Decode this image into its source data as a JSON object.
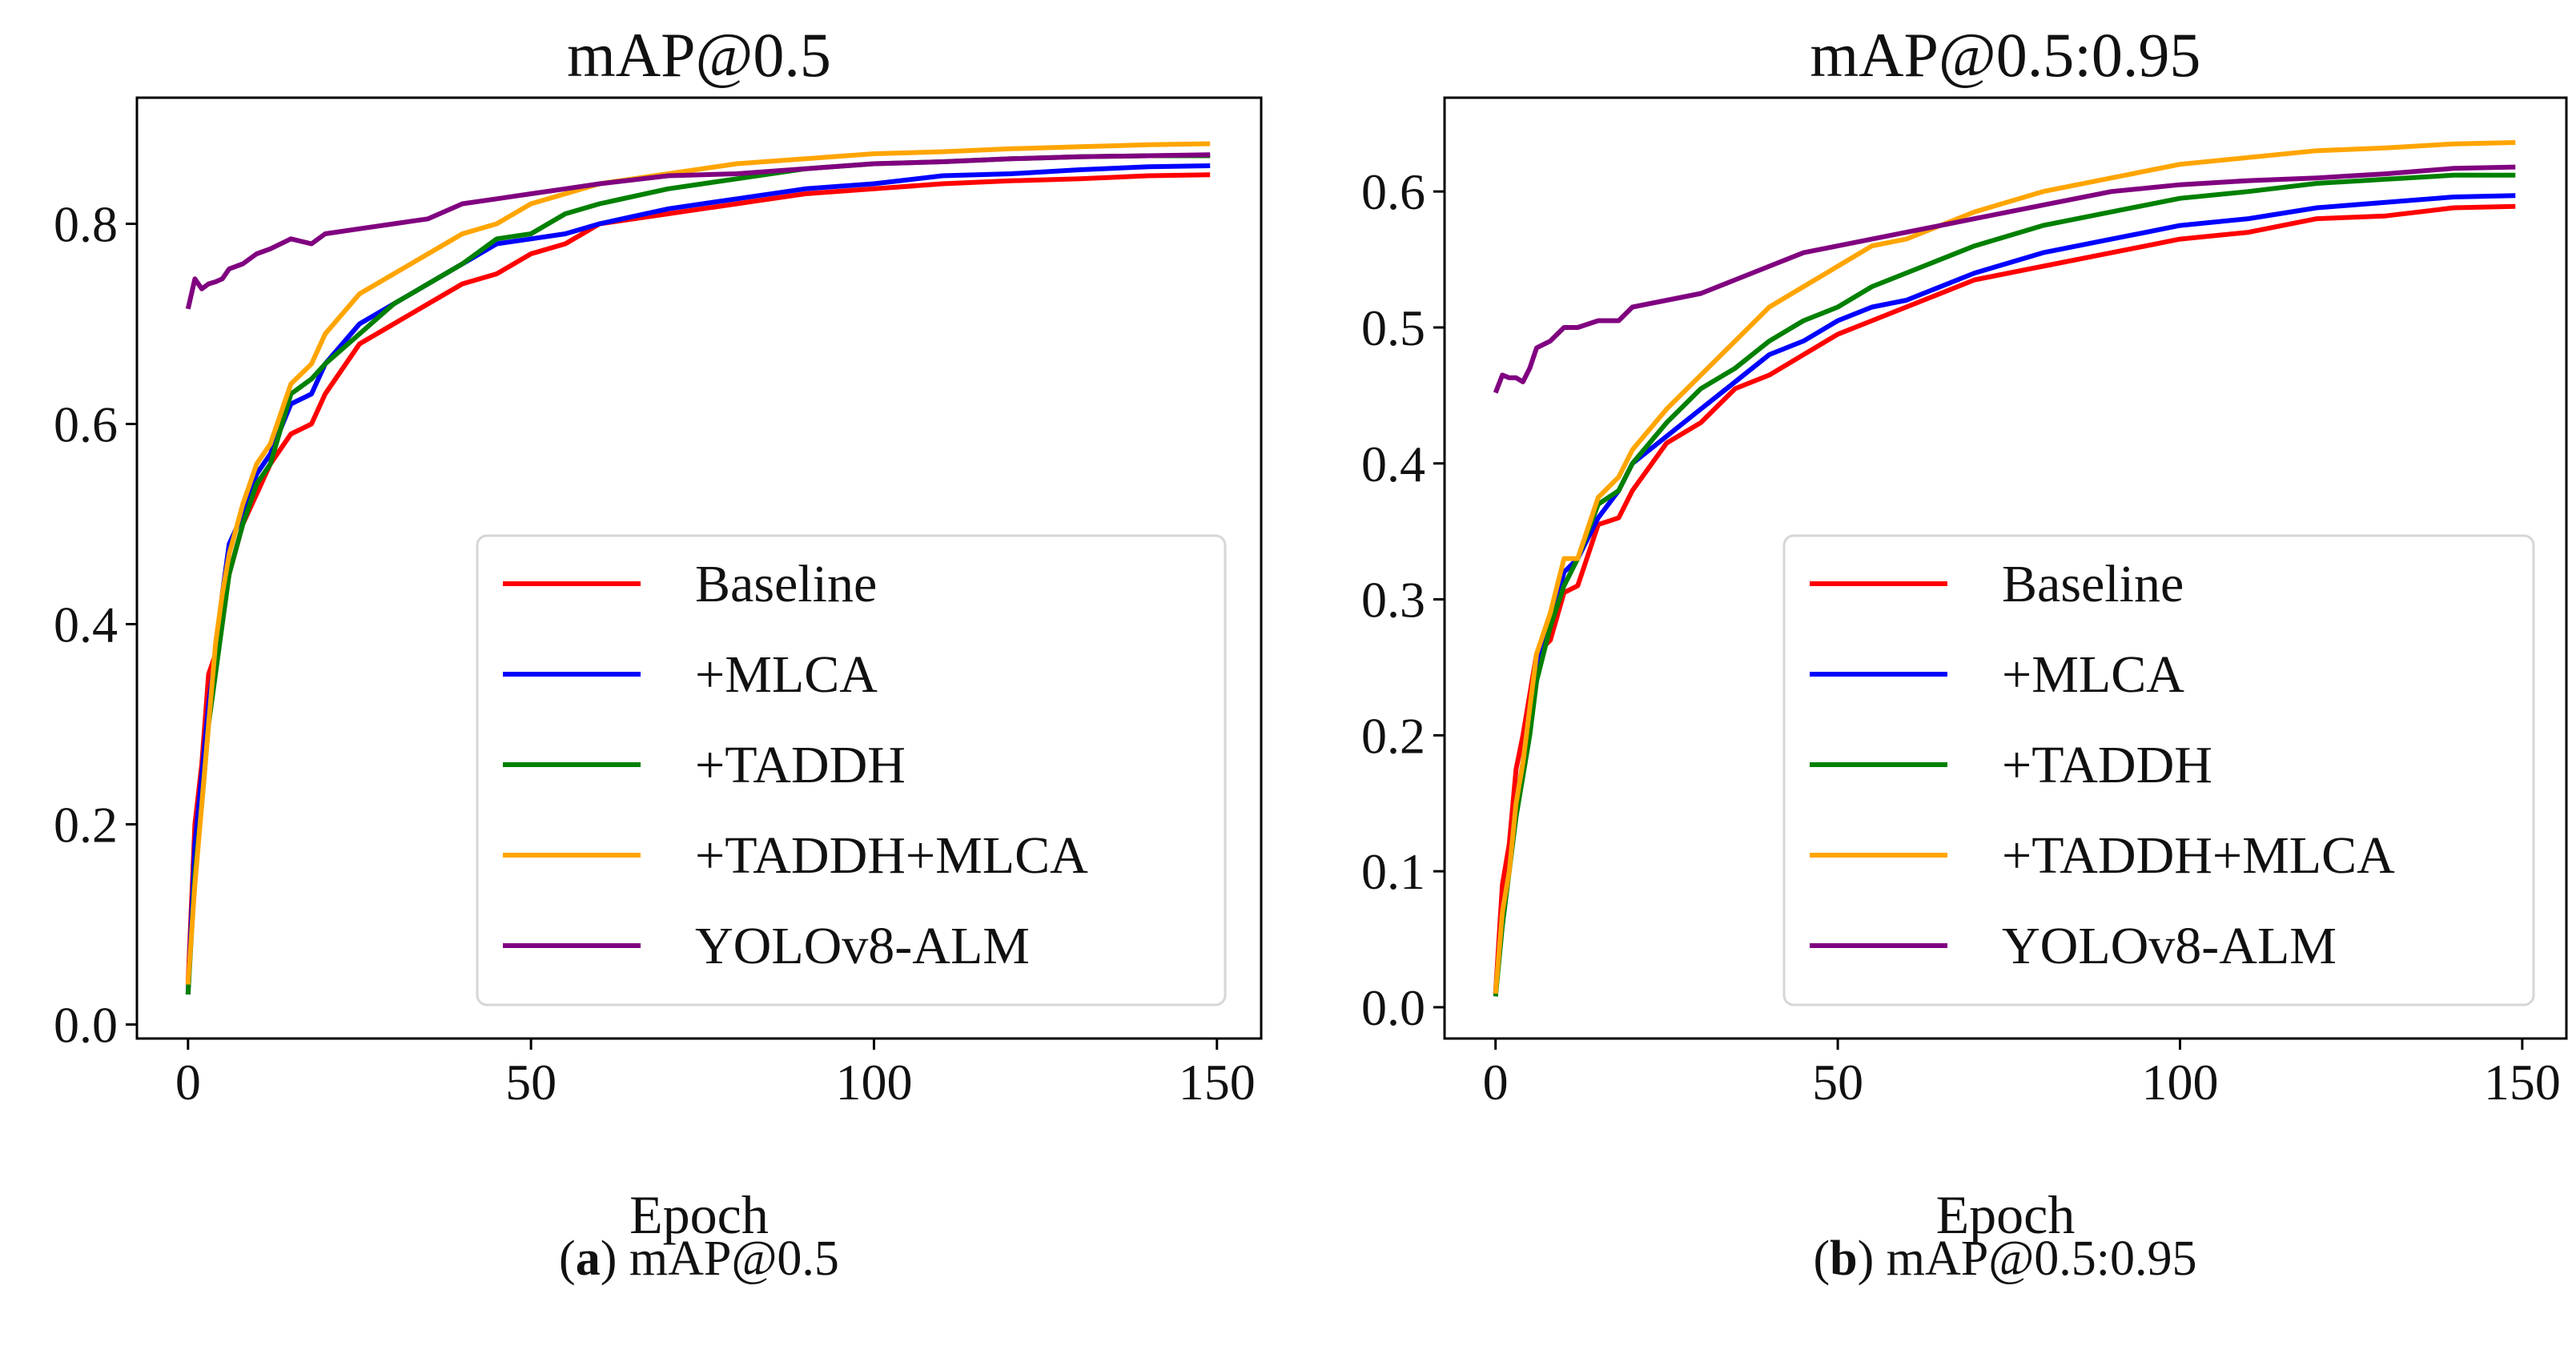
{
  "chart_data": [
    {
      "type": "line",
      "title": "mAP@0.5",
      "xlabel": "Epoch",
      "ylabel": "",
      "caption_label": "a",
      "caption_text": " mAP@0.5",
      "xlim": [
        -7.45,
        156.45
      ],
      "ylim": [
        -0.014,
        0.926
      ],
      "xticks": [
        0,
        50,
        100,
        150
      ],
      "yticks": [
        0.0,
        0.2,
        0.4,
        0.6,
        0.8
      ],
      "ytick_labels": [
        "0.0",
        "0.2",
        "0.4",
        "0.6",
        "0.8"
      ],
      "xtick_labels": [
        "0",
        "50",
        "100",
        "150"
      ],
      "legend_position": "lower-right",
      "grid": false,
      "x": [
        0,
        1,
        2,
        3,
        4,
        5,
        6,
        8,
        10,
        12,
        15,
        18,
        20,
        25,
        30,
        35,
        40,
        45,
        50,
        55,
        60,
        70,
        80,
        90,
        100,
        110,
        120,
        130,
        140,
        149
      ],
      "series": [
        {
          "name": "Baseline",
          "color": "#ff0000",
          "values": [
            0.04,
            0.2,
            0.26,
            0.35,
            0.37,
            0.42,
            0.45,
            0.5,
            0.53,
            0.56,
            0.59,
            0.6,
            0.63,
            0.68,
            0.7,
            0.72,
            0.74,
            0.75,
            0.77,
            0.78,
            0.8,
            0.81,
            0.82,
            0.83,
            0.835,
            0.84,
            0.843,
            0.845,
            0.848,
            0.849
          ]
        },
        {
          "name": "+MLCA",
          "color": "#0000ff",
          "values": [
            0.03,
            0.18,
            0.25,
            0.32,
            0.37,
            0.43,
            0.48,
            0.51,
            0.55,
            0.57,
            0.62,
            0.63,
            0.66,
            0.7,
            0.72,
            0.74,
            0.76,
            0.78,
            0.785,
            0.79,
            0.8,
            0.815,
            0.825,
            0.835,
            0.84,
            0.848,
            0.85,
            0.854,
            0.857,
            0.858
          ]
        },
        {
          "name": "+TADDH",
          "color": "#008000",
          "values": [
            0.03,
            0.15,
            0.22,
            0.3,
            0.35,
            0.4,
            0.45,
            0.5,
            0.54,
            0.56,
            0.63,
            0.645,
            0.66,
            0.69,
            0.72,
            0.74,
            0.76,
            0.785,
            0.79,
            0.81,
            0.82,
            0.835,
            0.845,
            0.855,
            0.86,
            0.862,
            0.865,
            0.867,
            0.868,
            0.868
          ]
        },
        {
          "name": "+TADDH+MLCA",
          "color": "#ffa500",
          "values": [
            0.04,
            0.14,
            0.22,
            0.3,
            0.38,
            0.43,
            0.47,
            0.52,
            0.56,
            0.58,
            0.64,
            0.66,
            0.69,
            0.73,
            0.75,
            0.77,
            0.79,
            0.8,
            0.82,
            0.83,
            0.84,
            0.85,
            0.86,
            0.865,
            0.87,
            0.872,
            0.875,
            0.877,
            0.879,
            0.88
          ]
        },
        {
          "name": "YOLOv8-ALM",
          "color": "#800080",
          "values": [
            0.715,
            0.745,
            0.735,
            0.74,
            0.742,
            0.745,
            0.755,
            0.76,
            0.77,
            0.775,
            0.785,
            0.78,
            0.79,
            0.795,
            0.8,
            0.805,
            0.82,
            0.825,
            0.83,
            0.835,
            0.84,
            0.848,
            0.85,
            0.855,
            0.86,
            0.862,
            0.865,
            0.867,
            0.868,
            0.869
          ]
        }
      ]
    },
    {
      "type": "line",
      "title": "mAP@0.5:0.95",
      "xlabel": "Epoch",
      "ylabel": "",
      "caption_label": "b",
      "caption_text": " mAP@0.5:0.95",
      "xlim": [
        -7.45,
        156.45
      ],
      "ylim": [
        -0.023,
        0.669
      ],
      "xticks": [
        0,
        50,
        100,
        150
      ],
      "yticks": [
        0.0,
        0.1,
        0.2,
        0.3,
        0.4,
        0.5,
        0.6
      ],
      "ytick_labels": [
        "0.0",
        "0.1",
        "0.2",
        "0.3",
        "0.4",
        "0.5",
        "0.6"
      ],
      "xtick_labels": [
        "0",
        "50",
        "100",
        "150"
      ],
      "legend_position": "lower-right",
      "grid": false,
      "x": [
        0,
        1,
        2,
        3,
        4,
        5,
        6,
        8,
        10,
        12,
        15,
        18,
        20,
        25,
        30,
        35,
        40,
        45,
        50,
        55,
        60,
        70,
        80,
        90,
        100,
        110,
        120,
        130,
        140,
        149
      ],
      "series": [
        {
          "name": "Baseline",
          "color": "#ff0000",
          "values": [
            0.01,
            0.09,
            0.12,
            0.175,
            0.2,
            0.23,
            0.26,
            0.27,
            0.305,
            0.31,
            0.355,
            0.36,
            0.38,
            0.415,
            0.43,
            0.455,
            0.465,
            0.48,
            0.495,
            0.505,
            0.515,
            0.535,
            0.545,
            0.555,
            0.565,
            0.57,
            0.58,
            0.582,
            0.588,
            0.589
          ]
        },
        {
          "name": "+MLCA",
          "color": "#0000ff",
          "values": [
            0.01,
            0.07,
            0.1,
            0.15,
            0.18,
            0.22,
            0.25,
            0.28,
            0.32,
            0.33,
            0.36,
            0.38,
            0.4,
            0.42,
            0.44,
            0.46,
            0.48,
            0.49,
            0.505,
            0.515,
            0.52,
            0.54,
            0.555,
            0.565,
            0.575,
            0.58,
            0.588,
            0.592,
            0.596,
            0.597
          ]
        },
        {
          "name": "+TADDH",
          "color": "#008000",
          "values": [
            0.008,
            0.06,
            0.1,
            0.14,
            0.17,
            0.2,
            0.24,
            0.28,
            0.31,
            0.33,
            0.37,
            0.38,
            0.4,
            0.43,
            0.455,
            0.47,
            0.49,
            0.505,
            0.515,
            0.53,
            0.54,
            0.56,
            0.575,
            0.585,
            0.595,
            0.6,
            0.606,
            0.609,
            0.612,
            0.612
          ]
        },
        {
          "name": "+TADDH+MLCA",
          "color": "#ffa500",
          "values": [
            0.01,
            0.07,
            0.1,
            0.15,
            0.18,
            0.22,
            0.26,
            0.29,
            0.33,
            0.33,
            0.375,
            0.39,
            0.41,
            0.44,
            0.465,
            0.49,
            0.515,
            0.53,
            0.545,
            0.56,
            0.565,
            0.585,
            0.6,
            0.61,
            0.62,
            0.625,
            0.63,
            0.632,
            0.635,
            0.636
          ]
        },
        {
          "name": "YOLOv8-ALM",
          "color": "#800080",
          "values": [
            0.452,
            0.465,
            0.463,
            0.463,
            0.46,
            0.47,
            0.485,
            0.49,
            0.5,
            0.5,
            0.505,
            0.505,
            0.515,
            0.52,
            0.525,
            0.535,
            0.545,
            0.555,
            0.56,
            0.565,
            0.57,
            0.58,
            0.59,
            0.6,
            0.605,
            0.608,
            0.61,
            0.613,
            0.617,
            0.618
          ]
        }
      ]
    }
  ]
}
